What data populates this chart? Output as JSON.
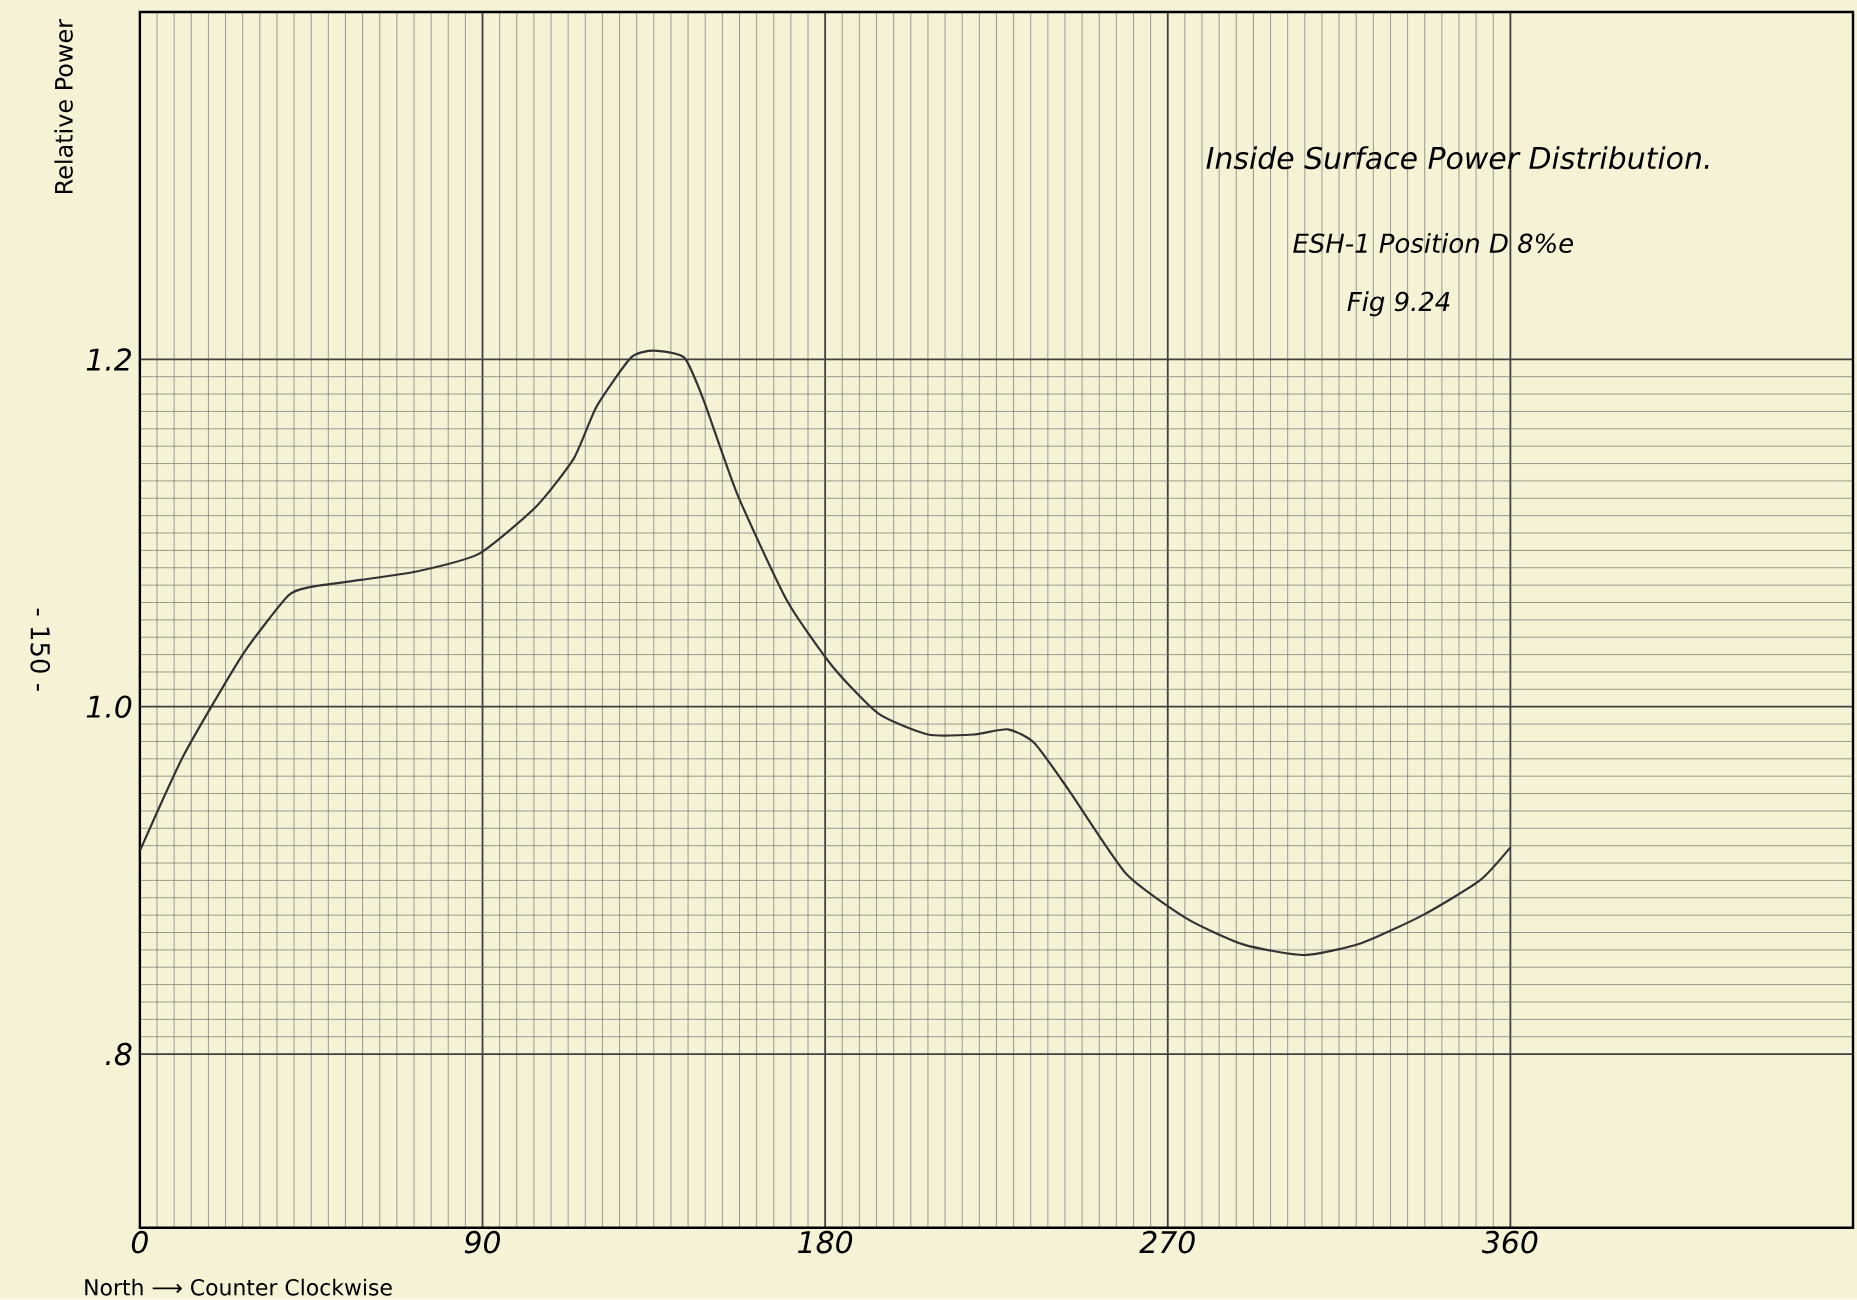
{
  "chart_data": {
    "type": "line",
    "title": "Inside Surface Power Distribution.",
    "subtitle": "ESH-1 Position D 8%e",
    "xlabel": "North ⟶ Counter Clockwise",
    "ylabel": "Relative Power",
    "annotations": [
      "Fig 9.24",
      "- 150 -"
    ],
    "x": [
      0,
      11.5,
      27,
      39,
      45,
      58,
      73,
      89,
      104,
      114,
      120,
      129,
      135,
      143,
      148,
      157,
      170,
      182,
      194,
      207,
      219,
      228,
      235,
      244,
      259,
      275,
      290,
      306,
      321,
      337,
      352,
      360
    ],
    "series": [
      {
        "color": "#333333",
        "values": [
          0.917,
          0.972,
          1.03,
          1.064,
          1.069,
          1.073,
          1.078,
          1.088,
          1.115,
          1.143,
          1.173,
          1.201,
          1.205,
          1.201,
          1.177,
          1.122,
          1.061,
          1.023,
          0.996,
          0.984,
          0.984,
          0.987,
          0.979,
          0.952,
          0.904,
          0.878,
          0.863,
          0.857,
          0.864,
          0.88,
          0.9,
          0.919
        ]
      }
    ],
    "xlim": [
      0,
      450
    ],
    "ylim": [
      0.7,
      1.4
    ],
    "xticks": [
      0,
      90,
      180,
      270,
      360
    ],
    "yticks": [
      {
        "value": 0.8,
        "label": ".8"
      },
      {
        "value": 1.0,
        "label": "1.0"
      },
      1.2
    ],
    "grid": true
  }
}
